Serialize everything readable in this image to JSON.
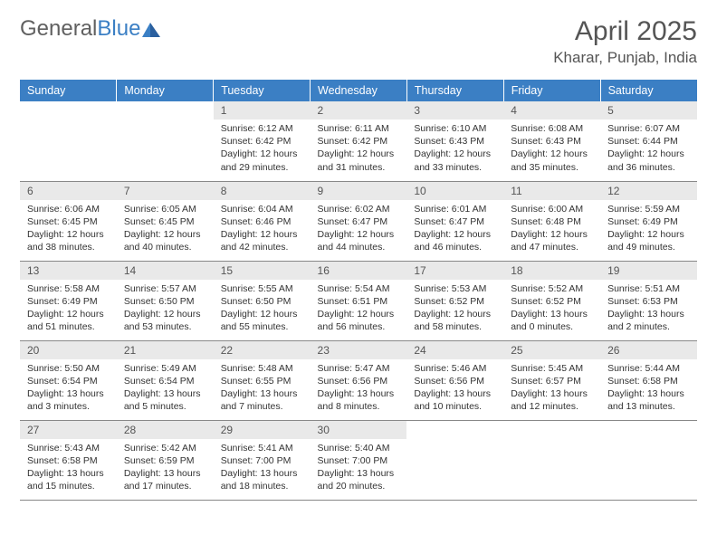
{
  "logo": {
    "text1": "General",
    "text2": "Blue"
  },
  "title": "April 2025",
  "location": "Kharar, Punjab, India",
  "colors": {
    "header_bg": "#3b7fc4",
    "header_text": "#ffffff",
    "daynum_bg": "#e9e9e9",
    "text": "#333333",
    "grid_border": "#888888"
  },
  "weekdays": [
    "Sunday",
    "Monday",
    "Tuesday",
    "Wednesday",
    "Thursday",
    "Friday",
    "Saturday"
  ],
  "weeks": [
    [
      null,
      null,
      {
        "d": "1",
        "sr": "Sunrise: 6:12 AM",
        "ss": "Sunset: 6:42 PM",
        "dl1": "Daylight: 12 hours",
        "dl2": "and 29 minutes."
      },
      {
        "d": "2",
        "sr": "Sunrise: 6:11 AM",
        "ss": "Sunset: 6:42 PM",
        "dl1": "Daylight: 12 hours",
        "dl2": "and 31 minutes."
      },
      {
        "d": "3",
        "sr": "Sunrise: 6:10 AM",
        "ss": "Sunset: 6:43 PM",
        "dl1": "Daylight: 12 hours",
        "dl2": "and 33 minutes."
      },
      {
        "d": "4",
        "sr": "Sunrise: 6:08 AM",
        "ss": "Sunset: 6:43 PM",
        "dl1": "Daylight: 12 hours",
        "dl2": "and 35 minutes."
      },
      {
        "d": "5",
        "sr": "Sunrise: 6:07 AM",
        "ss": "Sunset: 6:44 PM",
        "dl1": "Daylight: 12 hours",
        "dl2": "and 36 minutes."
      }
    ],
    [
      {
        "d": "6",
        "sr": "Sunrise: 6:06 AM",
        "ss": "Sunset: 6:45 PM",
        "dl1": "Daylight: 12 hours",
        "dl2": "and 38 minutes."
      },
      {
        "d": "7",
        "sr": "Sunrise: 6:05 AM",
        "ss": "Sunset: 6:45 PM",
        "dl1": "Daylight: 12 hours",
        "dl2": "and 40 minutes."
      },
      {
        "d": "8",
        "sr": "Sunrise: 6:04 AM",
        "ss": "Sunset: 6:46 PM",
        "dl1": "Daylight: 12 hours",
        "dl2": "and 42 minutes."
      },
      {
        "d": "9",
        "sr": "Sunrise: 6:02 AM",
        "ss": "Sunset: 6:47 PM",
        "dl1": "Daylight: 12 hours",
        "dl2": "and 44 minutes."
      },
      {
        "d": "10",
        "sr": "Sunrise: 6:01 AM",
        "ss": "Sunset: 6:47 PM",
        "dl1": "Daylight: 12 hours",
        "dl2": "and 46 minutes."
      },
      {
        "d": "11",
        "sr": "Sunrise: 6:00 AM",
        "ss": "Sunset: 6:48 PM",
        "dl1": "Daylight: 12 hours",
        "dl2": "and 47 minutes."
      },
      {
        "d": "12",
        "sr": "Sunrise: 5:59 AM",
        "ss": "Sunset: 6:49 PM",
        "dl1": "Daylight: 12 hours",
        "dl2": "and 49 minutes."
      }
    ],
    [
      {
        "d": "13",
        "sr": "Sunrise: 5:58 AM",
        "ss": "Sunset: 6:49 PM",
        "dl1": "Daylight: 12 hours",
        "dl2": "and 51 minutes."
      },
      {
        "d": "14",
        "sr": "Sunrise: 5:57 AM",
        "ss": "Sunset: 6:50 PM",
        "dl1": "Daylight: 12 hours",
        "dl2": "and 53 minutes."
      },
      {
        "d": "15",
        "sr": "Sunrise: 5:55 AM",
        "ss": "Sunset: 6:50 PM",
        "dl1": "Daylight: 12 hours",
        "dl2": "and 55 minutes."
      },
      {
        "d": "16",
        "sr": "Sunrise: 5:54 AM",
        "ss": "Sunset: 6:51 PM",
        "dl1": "Daylight: 12 hours",
        "dl2": "and 56 minutes."
      },
      {
        "d": "17",
        "sr": "Sunrise: 5:53 AM",
        "ss": "Sunset: 6:52 PM",
        "dl1": "Daylight: 12 hours",
        "dl2": "and 58 minutes."
      },
      {
        "d": "18",
        "sr": "Sunrise: 5:52 AM",
        "ss": "Sunset: 6:52 PM",
        "dl1": "Daylight: 13 hours",
        "dl2": "and 0 minutes."
      },
      {
        "d": "19",
        "sr": "Sunrise: 5:51 AM",
        "ss": "Sunset: 6:53 PM",
        "dl1": "Daylight: 13 hours",
        "dl2": "and 2 minutes."
      }
    ],
    [
      {
        "d": "20",
        "sr": "Sunrise: 5:50 AM",
        "ss": "Sunset: 6:54 PM",
        "dl1": "Daylight: 13 hours",
        "dl2": "and 3 minutes."
      },
      {
        "d": "21",
        "sr": "Sunrise: 5:49 AM",
        "ss": "Sunset: 6:54 PM",
        "dl1": "Daylight: 13 hours",
        "dl2": "and 5 minutes."
      },
      {
        "d": "22",
        "sr": "Sunrise: 5:48 AM",
        "ss": "Sunset: 6:55 PM",
        "dl1": "Daylight: 13 hours",
        "dl2": "and 7 minutes."
      },
      {
        "d": "23",
        "sr": "Sunrise: 5:47 AM",
        "ss": "Sunset: 6:56 PM",
        "dl1": "Daylight: 13 hours",
        "dl2": "and 8 minutes."
      },
      {
        "d": "24",
        "sr": "Sunrise: 5:46 AM",
        "ss": "Sunset: 6:56 PM",
        "dl1": "Daylight: 13 hours",
        "dl2": "and 10 minutes."
      },
      {
        "d": "25",
        "sr": "Sunrise: 5:45 AM",
        "ss": "Sunset: 6:57 PM",
        "dl1": "Daylight: 13 hours",
        "dl2": "and 12 minutes."
      },
      {
        "d": "26",
        "sr": "Sunrise: 5:44 AM",
        "ss": "Sunset: 6:58 PM",
        "dl1": "Daylight: 13 hours",
        "dl2": "and 13 minutes."
      }
    ],
    [
      {
        "d": "27",
        "sr": "Sunrise: 5:43 AM",
        "ss": "Sunset: 6:58 PM",
        "dl1": "Daylight: 13 hours",
        "dl2": "and 15 minutes."
      },
      {
        "d": "28",
        "sr": "Sunrise: 5:42 AM",
        "ss": "Sunset: 6:59 PM",
        "dl1": "Daylight: 13 hours",
        "dl2": "and 17 minutes."
      },
      {
        "d": "29",
        "sr": "Sunrise: 5:41 AM",
        "ss": "Sunset: 7:00 PM",
        "dl1": "Daylight: 13 hours",
        "dl2": "and 18 minutes."
      },
      {
        "d": "30",
        "sr": "Sunrise: 5:40 AM",
        "ss": "Sunset: 7:00 PM",
        "dl1": "Daylight: 13 hours",
        "dl2": "and 20 minutes."
      },
      null,
      null,
      null
    ]
  ]
}
